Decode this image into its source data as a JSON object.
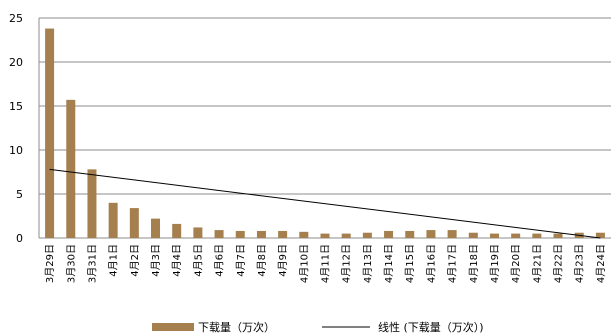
{
  "chart_data": {
    "type": "bar",
    "categories": [
      "3月29日",
      "3月30日",
      "3月31日",
      "4月1日",
      "4月2日",
      "4月3日",
      "4月4日",
      "4月5日",
      "4月6日",
      "4月7日",
      "4月8日",
      "4月9日",
      "4月10日",
      "4月11日",
      "4月12日",
      "4月13日",
      "4月14日",
      "4月15日",
      "4月16日",
      "4月17日",
      "4月18日",
      "4月19日",
      "4月20日",
      "4月21日",
      "4月22日",
      "4月23日",
      "4月24日"
    ],
    "series": [
      {
        "name": "下载量（万次）",
        "values": [
          23.8,
          15.7,
          7.8,
          4.0,
          3.4,
          2.2,
          1.6,
          1.2,
          0.9,
          0.8,
          0.8,
          0.8,
          0.7,
          0.5,
          0.5,
          0.6,
          0.8,
          0.8,
          0.9,
          0.9,
          0.6,
          0.5,
          0.5,
          0.5,
          0.5,
          0.6,
          0.6
        ],
        "color": "#a67f4e"
      }
    ],
    "trendline": {
      "name": "线性 (下载量（万次）)",
      "start": 7.8,
      "end": 0,
      "color": "#000000"
    },
    "yticks": [
      "0",
      "5",
      "10",
      "15",
      "20",
      "25"
    ],
    "ylim": [
      0,
      25
    ],
    "grid": true,
    "legend": "bottom",
    "title": "",
    "xlabel": "",
    "ylabel": ""
  }
}
